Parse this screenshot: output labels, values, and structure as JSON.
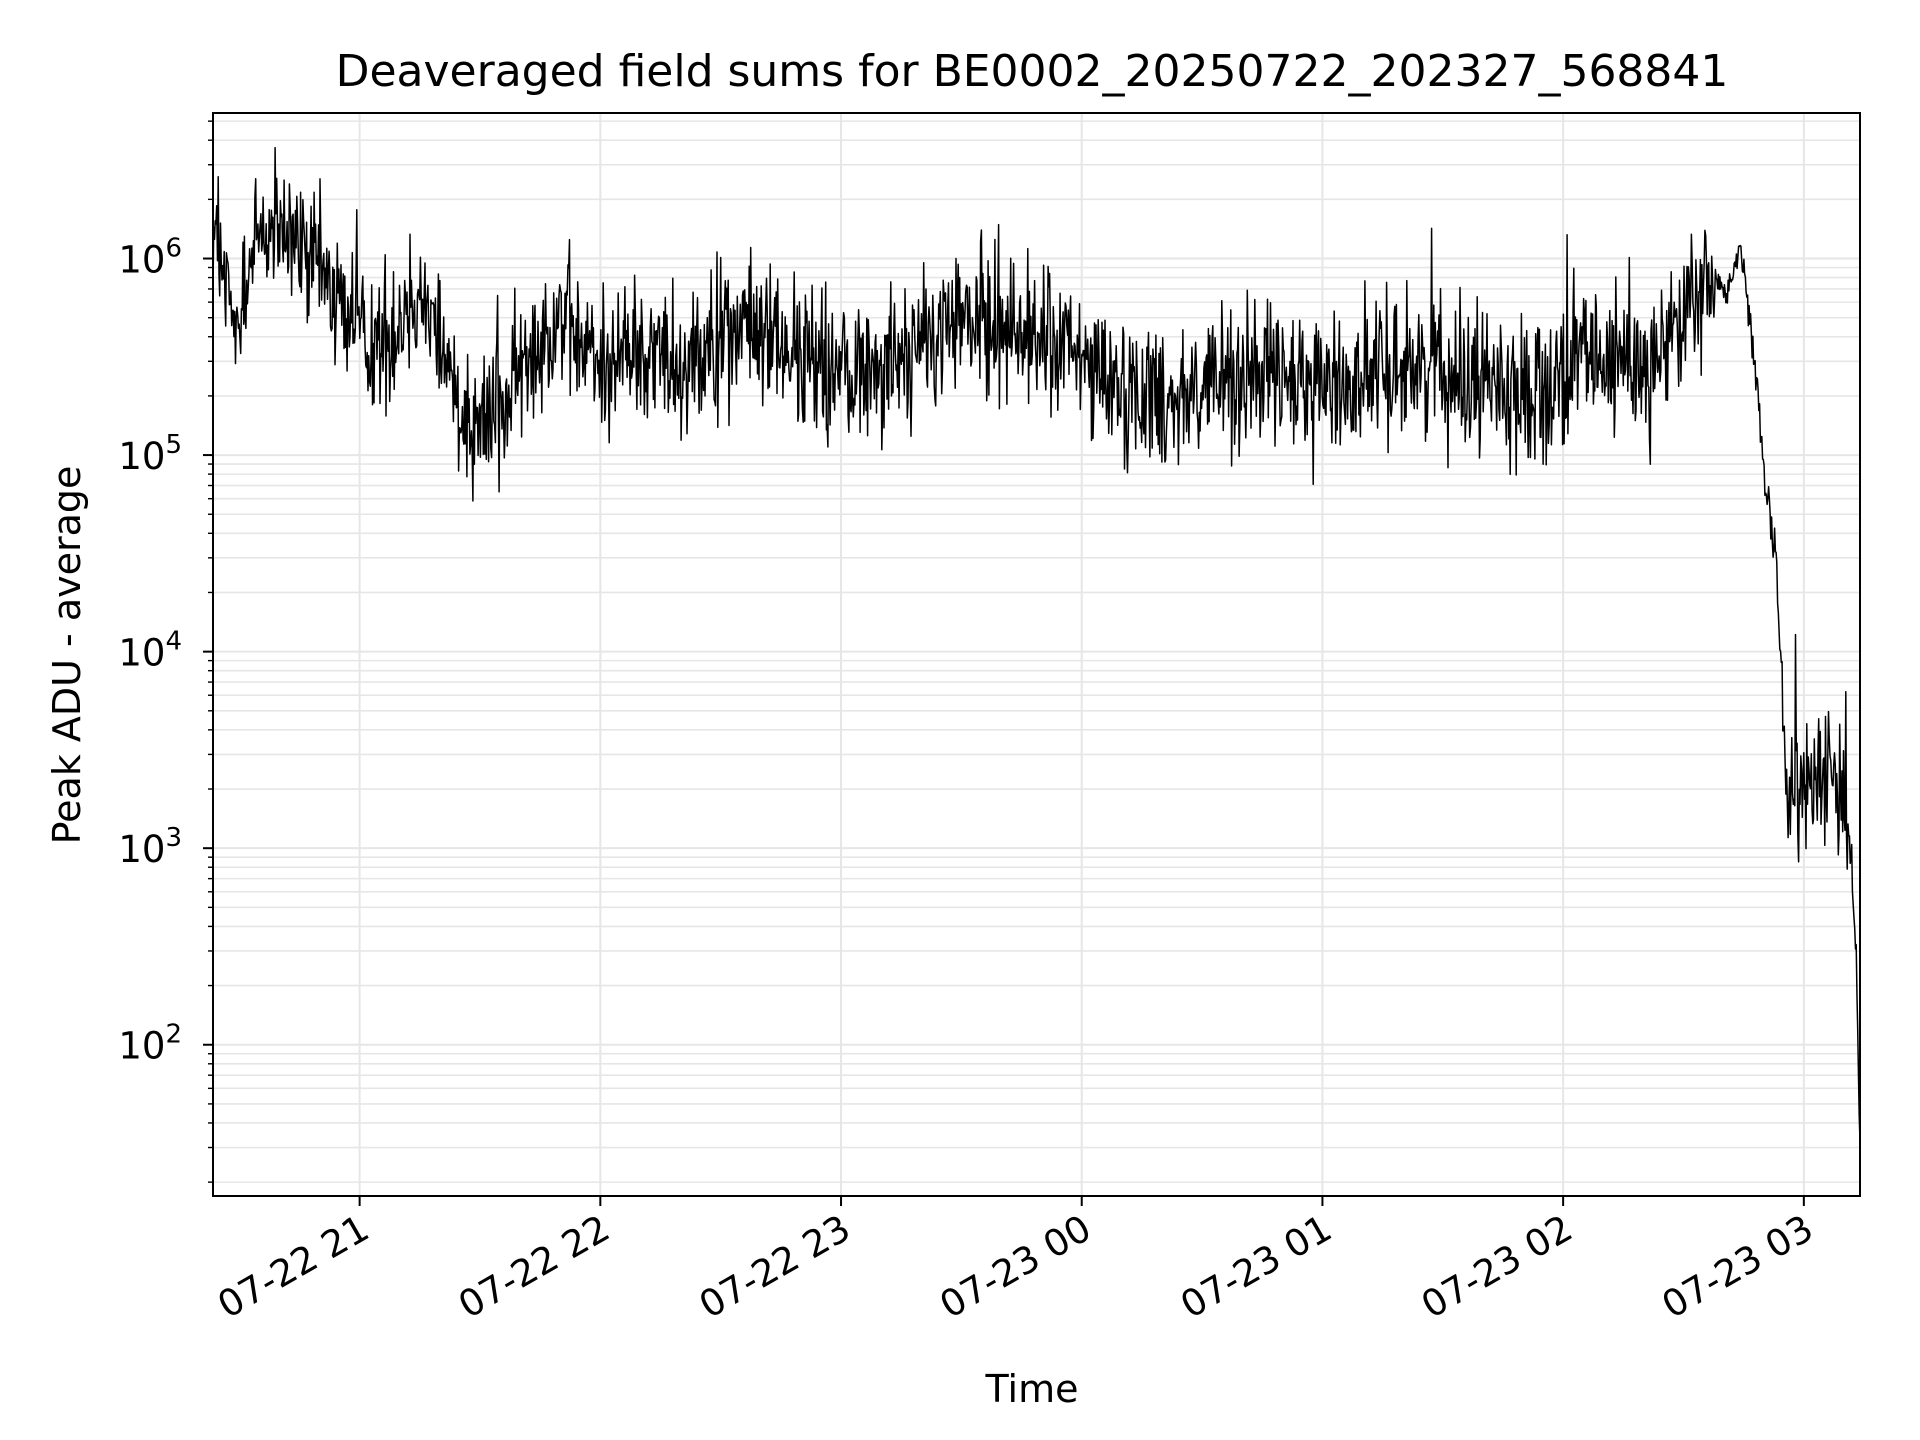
{
  "chart_data": {
    "type": "line",
    "title": "Deaveraged field sums for BE0002_20250722_202327_568841",
    "xlabel": "Time",
    "ylabel": "Peak ADU - average",
    "yscale": "log",
    "xlim": [
      "2025-07-22 20:23:27",
      "2025-07-23 03:14:00"
    ],
    "ylim": [
      17,
      5500000
    ],
    "grid": true,
    "x_tick_labels": [
      "07-22 21",
      "07-22 22",
      "07-22 23",
      "07-23 00",
      "07-23 01",
      "07-23 02",
      "07-23 03"
    ],
    "y_tick_labels": [
      {
        "base": "10",
        "exp": "2"
      },
      {
        "base": "10",
        "exp": "3"
      },
      {
        "base": "10",
        "exp": "4"
      },
      {
        "base": "10",
        "exp": "5"
      },
      {
        "base": "10",
        "exp": "6"
      }
    ],
    "series": [
      {
        "color": "#000000",
        "x": [
          "2025-07-22 20:23:27",
          "2025-07-22 20:26",
          "2025-07-22 20:30",
          "2025-07-22 20:32",
          "2025-07-22 20:35",
          "2025-07-22 20:40",
          "2025-07-22 20:45",
          "2025-07-22 20:50",
          "2025-07-22 20:55",
          "2025-07-22 21:00",
          "2025-07-22 21:05",
          "2025-07-22 21:10",
          "2025-07-22 21:15",
          "2025-07-22 21:20",
          "2025-07-22 21:25",
          "2025-07-22 21:30",
          "2025-07-22 21:35",
          "2025-07-22 21:40",
          "2025-07-22 21:45",
          "2025-07-22 21:50",
          "2025-07-22 21:55",
          "2025-07-22 22:00",
          "2025-07-22 22:10",
          "2025-07-22 22:20",
          "2025-07-22 22:30",
          "2025-07-22 22:40",
          "2025-07-22 22:50",
          "2025-07-22 23:00",
          "2025-07-22 23:10",
          "2025-07-22 23:20",
          "2025-07-22 23:30",
          "2025-07-22 23:40",
          "2025-07-22 23:50",
          "2025-07-23 00:00",
          "2025-07-23 00:10",
          "2025-07-23 00:20",
          "2025-07-23 00:30",
          "2025-07-23 00:40",
          "2025-07-23 00:50",
          "2025-07-23 01:00",
          "2025-07-23 01:10",
          "2025-07-23 01:20",
          "2025-07-23 01:30",
          "2025-07-23 01:40",
          "2025-07-23 01:50",
          "2025-07-23 02:00",
          "2025-07-23 02:10",
          "2025-07-23 02:20",
          "2025-07-23 02:25",
          "2025-07-23 02:30",
          "2025-07-23 02:35",
          "2025-07-23 02:38",
          "2025-07-23 02:41",
          "2025-07-23 02:44",
          "2025-07-23 02:47",
          "2025-07-23 02:50",
          "2025-07-23 02:53",
          "2025-07-23 02:56",
          "2025-07-23 02:59",
          "2025-07-23 03:02",
          "2025-07-23 03:05",
          "2025-07-23 03:08",
          "2025-07-23 03:11",
          "2025-07-23 03:13",
          "2025-07-23 03:14"
        ],
        "values": [
          1500000,
          700000,
          400000,
          800000,
          1400000,
          1300000,
          1100000,
          900000,
          600000,
          450000,
          350000,
          500000,
          700000,
          400000,
          180000,
          150000,
          180000,
          250000,
          400000,
          550000,
          350000,
          300000,
          350000,
          300000,
          400000,
          450000,
          300000,
          250000,
          300000,
          350000,
          500000,
          450000,
          400000,
          300000,
          220000,
          200000,
          220000,
          250000,
          230000,
          220000,
          250000,
          300000,
          280000,
          250000,
          200000,
          250000,
          300000,
          280000,
          350000,
          500000,
          700000,
          800000,
          650000,
          1200000,
          400000,
          80000,
          30000,
          1500,
          2000,
          2500,
          3000,
          2500,
          1500,
          300,
          30
        ]
      }
    ]
  }
}
